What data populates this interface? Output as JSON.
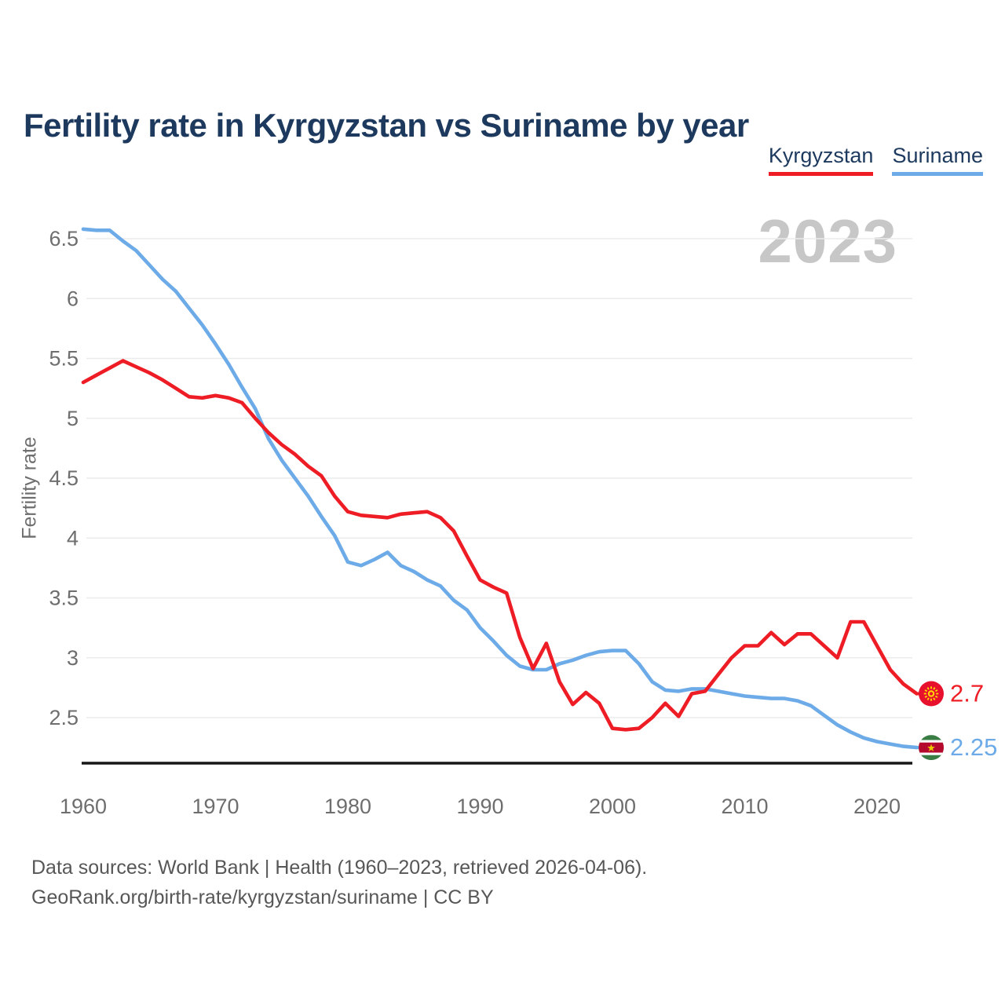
{
  "header": {
    "title": "Fertility rate in Kyrgyzstan vs Suriname by year"
  },
  "legend": {
    "items": [
      {
        "label": "Kyrgyzstan",
        "color": "#ee1d25"
      },
      {
        "label": "Suriname",
        "color": "#6dabe8"
      }
    ]
  },
  "footer": {
    "line1": "Data sources: World Bank | Health (1960–2023, retrieved 2026-04-06).",
    "line2": "GeoRank.org/birth-rate/kyrgyzstan/suriname | CC BY"
  },
  "chart_data": {
    "type": "line",
    "title": "Fertility rate in Kyrgyzstan vs Suriname by year",
    "xlabel": "",
    "ylabel": "Fertility rate",
    "watermark": "2023",
    "x_range": [
      1960,
      2023
    ],
    "x_step": 1,
    "x_ticks": [
      1960,
      1970,
      1980,
      1990,
      2000,
      2010,
      2020
    ],
    "y_ticks": [
      6.5,
      6,
      5.5,
      5,
      4.5,
      4,
      3.5,
      3,
      2.5
    ],
    "ylim": [
      2.1,
      6.65
    ],
    "grid": "horizontal",
    "legend_position": "top-right",
    "series": [
      {
        "name": "Kyrgyzstan",
        "color": "#ee1d25",
        "end_label": "2.7",
        "flag_icon": "kyrgyzstan-flag",
        "values": [
          5.3,
          5.36,
          5.42,
          5.48,
          5.43,
          5.38,
          5.32,
          5.25,
          5.18,
          5.17,
          5.19,
          5.17,
          5.13,
          5.0,
          4.88,
          4.78,
          4.7,
          4.6,
          4.52,
          4.35,
          4.22,
          4.19,
          4.18,
          4.17,
          4.2,
          4.21,
          4.22,
          4.17,
          4.06,
          3.85,
          3.65,
          3.59,
          3.54,
          3.17,
          2.91,
          3.12,
          2.8,
          2.61,
          2.71,
          2.62,
          2.41,
          2.4,
          2.41,
          2.5,
          2.62,
          2.51,
          2.7,
          2.72,
          2.86,
          3.0,
          3.1,
          3.1,
          3.21,
          3.11,
          3.2,
          3.2,
          3.1,
          3.0,
          3.3,
          3.3,
          3.1,
          2.9,
          2.78,
          2.7
        ]
      },
      {
        "name": "Suriname",
        "color": "#6dabe8",
        "end_label": "2.25",
        "flag_icon": "suriname-flag",
        "values": [
          6.58,
          6.57,
          6.57,
          6.48,
          6.4,
          6.28,
          6.16,
          6.06,
          5.92,
          5.78,
          5.62,
          5.45,
          5.26,
          5.08,
          4.83,
          4.65,
          4.5,
          4.35,
          4.18,
          4.02,
          3.8,
          3.77,
          3.82,
          3.88,
          3.77,
          3.72,
          3.65,
          3.6,
          3.48,
          3.4,
          3.25,
          3.14,
          3.02,
          2.93,
          2.9,
          2.9,
          2.95,
          2.98,
          3.02,
          3.05,
          3.06,
          3.06,
          2.95,
          2.8,
          2.73,
          2.72,
          2.74,
          2.74,
          2.72,
          2.7,
          2.68,
          2.67,
          2.66,
          2.66,
          2.64,
          2.6,
          2.52,
          2.44,
          2.38,
          2.33,
          2.3,
          2.28,
          2.26,
          2.25
        ]
      }
    ],
    "colors": {
      "grid": "#ebebeb",
      "axis": "#151515",
      "tick_text": "#6e6e6e",
      "watermark": "#c7c7c7",
      "kyrgyzstan_flag_red": "#e8112d",
      "kyrgyzstan_sun_yellow": "#ffdc00",
      "suriname_green": "#3a7d44",
      "suriname_red": "#b40a2d",
      "suriname_star_yellow": "#ecc500"
    }
  }
}
